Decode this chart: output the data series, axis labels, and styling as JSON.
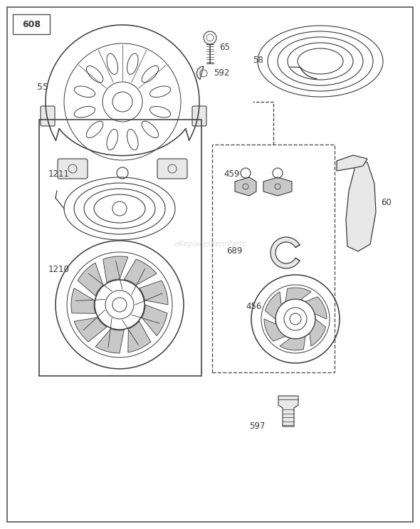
{
  "bg_color": "#ffffff",
  "line_color": "#3a3a3a",
  "gray_fill": "#c8c8c8",
  "light_gray": "#e8e8e8",
  "border_color": "#555555",
  "fig_w": 5.9,
  "fig_h": 7.43,
  "dpi": 100
}
